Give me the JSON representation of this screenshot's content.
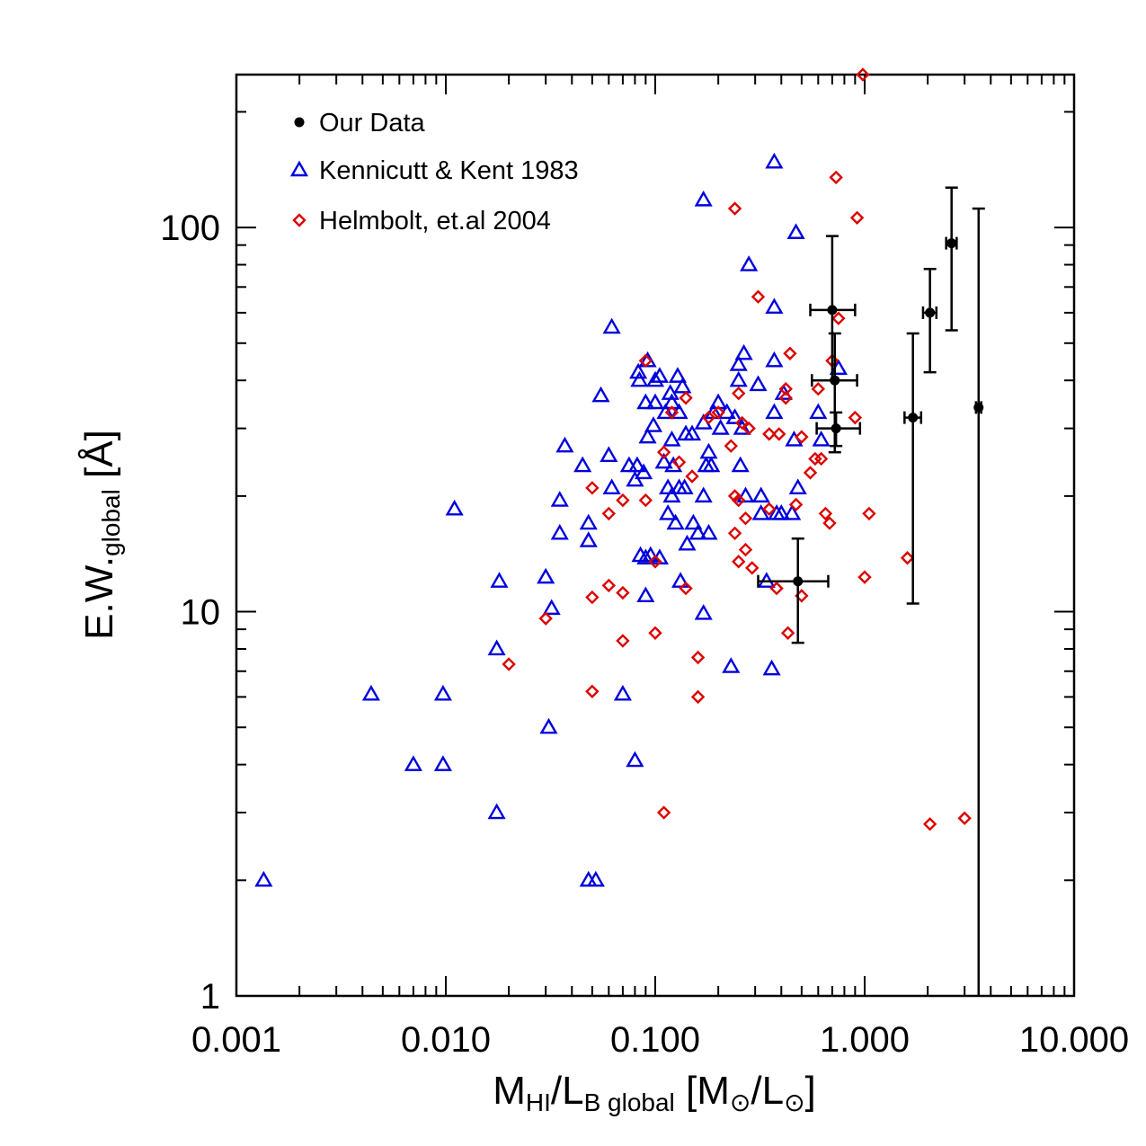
{
  "chart_data": {
    "type": "scatter",
    "xscale": "log",
    "yscale": "log",
    "xlim": [
      0.001,
      10
    ],
    "ylim": [
      1,
      250
    ],
    "x_tick_labels": [
      "0.001",
      "0.010",
      "0.100",
      "1.000",
      "10.000"
    ],
    "x_tick_values": [
      0.001,
      0.01,
      0.1,
      1,
      10
    ],
    "y_tick_labels": [
      "1",
      "10",
      "100"
    ],
    "y_tick_values": [
      1,
      10,
      100
    ],
    "xlabel": {
      "main1": "M",
      "sub1": "HI",
      "main2": "/L",
      "sub2": "B global",
      "main3": " [M",
      "sub3": "⊙",
      "main4": "/L",
      "sub4": "⊙",
      "main5": "]"
    },
    "ylabel": {
      "main1": "E.W.",
      "sub1": "global",
      "main2": " [Å]"
    },
    "legend_position": "top-left",
    "series": [
      {
        "name": "Our Data",
        "marker": "filled-circle",
        "color": "#000000",
        "points": [
          {
            "x": 0.7,
            "y": 61,
            "xerr": [
              0.55,
              0.9
            ],
            "yerr": [
              40,
              95
            ]
          },
          {
            "x": 0.72,
            "y": 40,
            "xerr": [
              0.56,
              0.92
            ],
            "yerr": [
              26,
              53
            ]
          },
          {
            "x": 0.73,
            "y": 30,
            "xerr": [
              0.59,
              0.95
            ],
            "yerr": [
              27,
              33
            ]
          },
          {
            "x": 0.48,
            "y": 12,
            "xerr": [
              0.31,
              0.67
            ],
            "yerr": [
              8.3,
              15.5
            ]
          },
          {
            "x": 1.7,
            "y": 32,
            "xerr": [
              1.55,
              1.86
            ],
            "yerr": [
              10.5,
              53
            ]
          },
          {
            "x": 2.05,
            "y": 60,
            "xerr": [
              1.9,
              2.2
            ],
            "yerr": [
              42,
              78
            ]
          },
          {
            "x": 2.6,
            "y": 91,
            "xerr": [
              2.45,
              2.75
            ],
            "yerr": [
              54,
              127
            ]
          },
          {
            "x": 3.5,
            "y": 34,
            "xerr": [
              3.4,
              3.6
            ],
            "yerr": [
              1,
              112
            ]
          }
        ]
      },
      {
        "name": "Kennicutt & Kent 1983",
        "marker": "open-triangle",
        "color": "#0000dd",
        "points": [
          [
            0.00135,
            2.0
          ],
          [
            0.0044,
            6.1
          ],
          [
            0.007,
            4.0
          ],
          [
            0.0097,
            6.1
          ],
          [
            0.0097,
            4.0
          ],
          [
            0.011,
            18.5
          ],
          [
            0.0175,
            8.0
          ],
          [
            0.0175,
            3.0
          ],
          [
            0.018,
            12.0
          ],
          [
            0.03,
            12.3
          ],
          [
            0.031,
            5.0
          ],
          [
            0.032,
            10.2
          ],
          [
            0.035,
            19.5
          ],
          [
            0.035,
            16.0
          ],
          [
            0.037,
            27.0
          ],
          [
            0.045,
            24.0
          ],
          [
            0.048,
            17.0
          ],
          [
            0.048,
            15.3
          ],
          [
            0.048,
            2.0
          ],
          [
            0.052,
            2.0
          ],
          [
            0.055,
            36.5
          ],
          [
            0.06,
            25.5
          ],
          [
            0.062,
            55.0
          ],
          [
            0.062,
            21.0
          ],
          [
            0.07,
            6.1
          ],
          [
            0.075,
            24.0
          ],
          [
            0.08,
            4.1
          ],
          [
            0.08,
            22.0
          ],
          [
            0.082,
            24.0
          ],
          [
            0.083,
            42.0
          ],
          [
            0.084,
            40.0
          ],
          [
            0.085,
            14.0
          ],
          [
            0.088,
            23.0
          ],
          [
            0.09,
            35.0
          ],
          [
            0.09,
            13.8
          ],
          [
            0.09,
            11.0
          ],
          [
            0.092,
            45.0
          ],
          [
            0.092,
            28.5
          ],
          [
            0.095,
            14.0
          ],
          [
            0.098,
            30.5
          ],
          [
            0.1,
            40.0
          ],
          [
            0.1,
            35.0
          ],
          [
            0.105,
            41.0
          ],
          [
            0.105,
            13.8
          ],
          [
            0.11,
            24.5
          ],
          [
            0.112,
            33.0
          ],
          [
            0.115,
            21.0
          ],
          [
            0.115,
            18.0
          ],
          [
            0.118,
            37.0
          ],
          [
            0.12,
            35.0
          ],
          [
            0.12,
            28.0
          ],
          [
            0.12,
            20.0
          ],
          [
            0.122,
            24.0
          ],
          [
            0.125,
            17.0
          ],
          [
            0.128,
            41.0
          ],
          [
            0.13,
            33.0
          ],
          [
            0.13,
            21.0
          ],
          [
            0.132,
            12.0
          ],
          [
            0.135,
            38.5
          ],
          [
            0.138,
            21.0
          ],
          [
            0.14,
            29.0
          ],
          [
            0.142,
            15.0
          ],
          [
            0.15,
            29.0
          ],
          [
            0.152,
            17.0
          ],
          [
            0.16,
            16.0
          ],
          [
            0.17,
            118.0
          ],
          [
            0.17,
            31.0
          ],
          [
            0.17,
            20.0
          ],
          [
            0.17,
            9.9
          ],
          [
            0.175,
            24.0
          ],
          [
            0.18,
            26.0
          ],
          [
            0.18,
            16.0
          ],
          [
            0.185,
            24.0
          ],
          [
            0.19,
            33.0
          ],
          [
            0.2,
            35.0
          ],
          [
            0.205,
            30.0
          ],
          [
            0.22,
            33.0
          ],
          [
            0.23,
            7.2
          ],
          [
            0.24,
            32.0
          ],
          [
            0.25,
            44.0
          ],
          [
            0.25,
            40.0
          ],
          [
            0.255,
            24.0
          ],
          [
            0.26,
            30.0
          ],
          [
            0.265,
            47.0
          ],
          [
            0.27,
            20.0
          ],
          [
            0.28,
            80.0
          ],
          [
            0.31,
            39.0
          ],
          [
            0.32,
            20.0
          ],
          [
            0.32,
            18.0
          ],
          [
            0.34,
            12.0
          ],
          [
            0.36,
            7.1
          ],
          [
            0.37,
            148.0
          ],
          [
            0.37,
            62.0
          ],
          [
            0.37,
            45.0
          ],
          [
            0.37,
            33.0
          ],
          [
            0.38,
            18.0
          ],
          [
            0.4,
            18.0
          ],
          [
            0.41,
            37.0
          ],
          [
            0.45,
            18.0
          ],
          [
            0.46,
            28.0
          ],
          [
            0.47,
            97.0
          ],
          [
            0.48,
            21.0
          ],
          [
            0.6,
            33.0
          ],
          [
            0.62,
            28.0
          ],
          [
            0.75,
            43.0
          ]
        ]
      },
      {
        "name": "Helmbolt, et.al 2004",
        "marker": "open-diamond",
        "color": "#dd0000",
        "points": [
          [
            0.02,
            7.3
          ],
          [
            0.03,
            9.6
          ],
          [
            0.05,
            21.0
          ],
          [
            0.05,
            10.9
          ],
          [
            0.05,
            6.2
          ],
          [
            0.06,
            18.0
          ],
          [
            0.06,
            11.7
          ],
          [
            0.07,
            19.5
          ],
          [
            0.07,
            11.2
          ],
          [
            0.07,
            8.4
          ],
          [
            0.09,
            45.0
          ],
          [
            0.09,
            19.5
          ],
          [
            0.1,
            13.5
          ],
          [
            0.1,
            8.8
          ],
          [
            0.11,
            26.0
          ],
          [
            0.11,
            3.0
          ],
          [
            0.12,
            33.0
          ],
          [
            0.13,
            24.5
          ],
          [
            0.14,
            36.0
          ],
          [
            0.14,
            11.5
          ],
          [
            0.15,
            22.5
          ],
          [
            0.16,
            7.6
          ],
          [
            0.16,
            6.0
          ],
          [
            0.18,
            32.0
          ],
          [
            0.2,
            33.0
          ],
          [
            0.23,
            27.0
          ],
          [
            0.24,
            112.0
          ],
          [
            0.24,
            20.0
          ],
          [
            0.24,
            16.0
          ],
          [
            0.25,
            37.0
          ],
          [
            0.25,
            19.5
          ],
          [
            0.25,
            13.5
          ],
          [
            0.26,
            31.0
          ],
          [
            0.27,
            17.5
          ],
          [
            0.27,
            14.5
          ],
          [
            0.28,
            30.0
          ],
          [
            0.29,
            13.0
          ],
          [
            0.31,
            66.0
          ],
          [
            0.35,
            29.0
          ],
          [
            0.35,
            18.5
          ],
          [
            0.38,
            11.5
          ],
          [
            0.39,
            29.0
          ],
          [
            0.42,
            38.0
          ],
          [
            0.42,
            36.0
          ],
          [
            0.43,
            8.8
          ],
          [
            0.44,
            47.0
          ],
          [
            0.47,
            19.0
          ],
          [
            0.5,
            28.5
          ],
          [
            0.5,
            11.0
          ],
          [
            0.55,
            23.0
          ],
          [
            0.58,
            25.0
          ],
          [
            0.6,
            38.0
          ],
          [
            0.62,
            25.0
          ],
          [
            0.65,
            18.0
          ],
          [
            0.68,
            17.0
          ],
          [
            0.7,
            45.0
          ],
          [
            0.73,
            135.0
          ],
          [
            0.75,
            58.0
          ],
          [
            0.9,
            32.0
          ],
          [
            0.92,
            106.0
          ],
          [
            0.98,
            250.0
          ],
          [
            1.0,
            12.3
          ],
          [
            1.05,
            18.0
          ],
          [
            1.6,
            13.8
          ],
          [
            2.05,
            2.8
          ],
          [
            3.0,
            2.9
          ]
        ]
      }
    ]
  }
}
